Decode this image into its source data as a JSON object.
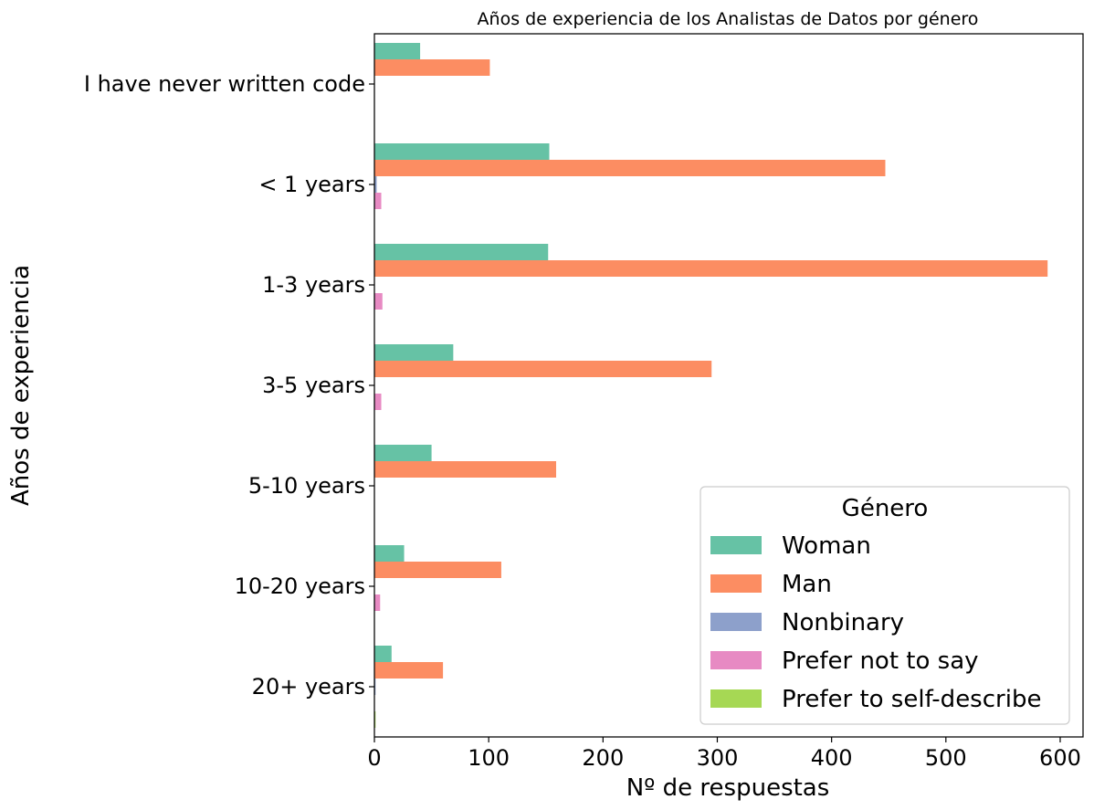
{
  "chart_data": {
    "type": "bar",
    "orientation": "horizontal",
    "title": "Años de experiencia de los Analistas de Datos por género",
    "xlabel": "Nº de respuestas",
    "ylabel": "Años de experiencia",
    "categories": [
      "I have never written code",
      "< 1 years",
      "1-3 years",
      "3-5 years",
      "5-10 years",
      "10-20 years",
      "20+ years"
    ],
    "xlim": [
      0,
      620
    ],
    "xticks": [
      0,
      100,
      200,
      300,
      400,
      500,
      600
    ],
    "grid": false,
    "legend": {
      "title": "Género",
      "placement": "lower-right"
    },
    "series": [
      {
        "name": "Woman",
        "color": "#66c2a5",
        "values": [
          40,
          153,
          152,
          69,
          50,
          26,
          15
        ]
      },
      {
        "name": "Man",
        "color": "#fc8d62",
        "values": [
          101,
          447,
          589,
          295,
          159,
          111,
          60
        ]
      },
      {
        "name": "Nonbinary",
        "color": "#8da0cb",
        "values": [
          0,
          2,
          0,
          0,
          0,
          0,
          1
        ]
      },
      {
        "name": "Prefer not to say",
        "color": "#e78ac3",
        "values": [
          0,
          6,
          7,
          6,
          0,
          5,
          0
        ]
      },
      {
        "name": "Prefer to self-describe",
        "color": "#a6d854",
        "values": [
          0,
          0,
          0,
          0,
          0,
          0,
          1
        ]
      }
    ]
  }
}
